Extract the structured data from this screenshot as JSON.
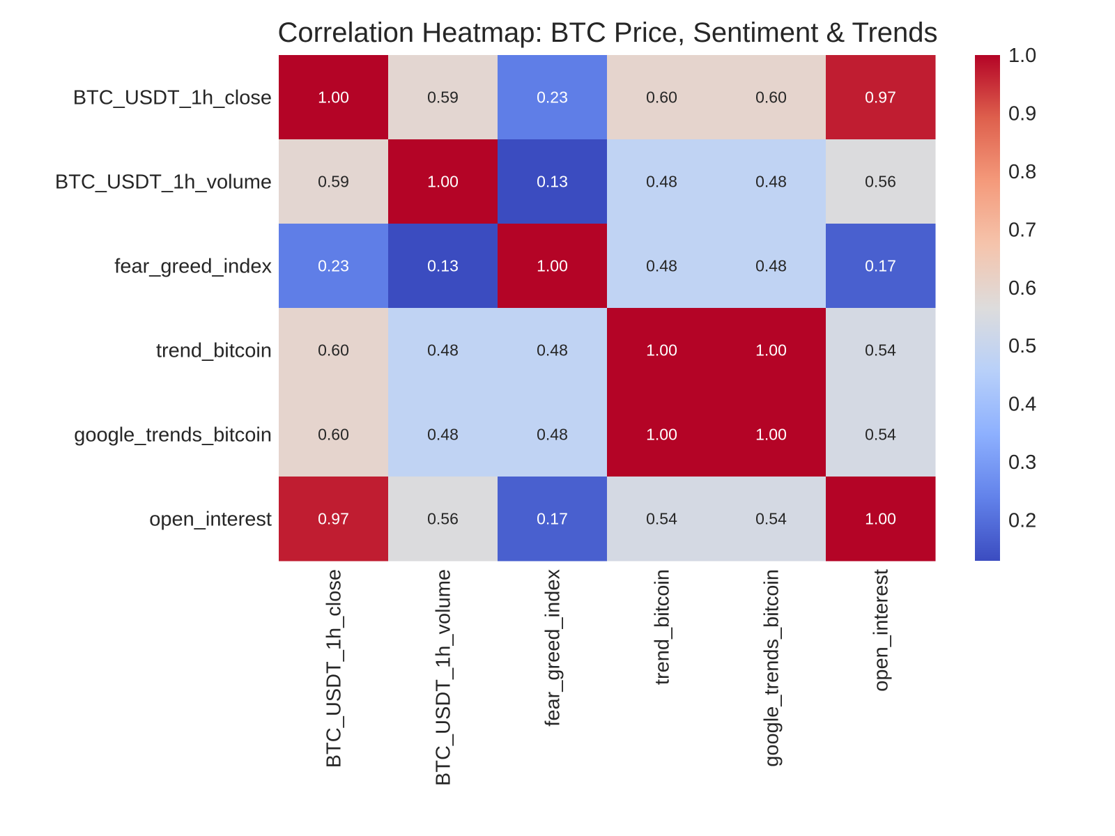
{
  "chart_data": {
    "type": "heatmap",
    "title": "Correlation Heatmap: BTC Price, Sentiment & Trends",
    "row_labels": [
      "BTC_USDT_1h_close",
      "BTC_USDT_1h_volume",
      "fear_greed_index",
      "trend_bitcoin",
      "google_trends_bitcoin",
      "open_interest"
    ],
    "col_labels": [
      "BTC_USDT_1h_close",
      "BTC_USDT_1h_volume",
      "fear_greed_index",
      "trend_bitcoin",
      "google_trends_bitcoin",
      "open_interest"
    ],
    "values": [
      [
        1.0,
        0.59,
        0.23,
        0.6,
        0.6,
        0.97
      ],
      [
        0.59,
        1.0,
        0.13,
        0.48,
        0.48,
        0.56
      ],
      [
        0.23,
        0.13,
        1.0,
        0.48,
        0.48,
        0.17
      ],
      [
        0.6,
        0.48,
        0.48,
        1.0,
        1.0,
        0.54
      ],
      [
        0.6,
        0.48,
        0.48,
        1.0,
        1.0,
        0.54
      ],
      [
        0.97,
        0.56,
        0.17,
        0.54,
        0.54,
        1.0
      ]
    ],
    "value_format": "0.00",
    "colormap": "coolwarm",
    "colorbar": {
      "min": 0.13,
      "max": 1.0,
      "ticks": [
        0.2,
        0.3,
        0.4,
        0.5,
        0.6,
        0.7,
        0.8,
        0.9,
        1.0
      ],
      "tick_labels": [
        "0.2",
        "0.3",
        "0.4",
        "0.5",
        "0.6",
        "0.7",
        "0.8",
        "0.9",
        "1.0"
      ],
      "placement": "right"
    },
    "colors": {
      "coolwarm_stops": [
        "#3b4cc0",
        "#6282ea",
        "#8db0fe",
        "#b8d0f9",
        "#dddcdc",
        "#f5c4ac",
        "#f49a7b",
        "#de604d",
        "#b40426"
      ],
      "text_dark": "#262626",
      "text_light": "#ffffff"
    }
  }
}
